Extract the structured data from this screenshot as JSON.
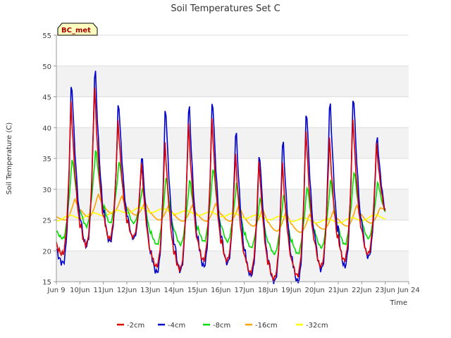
{
  "chart_data": {
    "type": "line",
    "title": "Soil Temperatures Set C",
    "xlabel": "Time",
    "ylabel": "Soil Temperature (C)",
    "site_label": "BC_met",
    "xlim": [
      9,
      24
    ],
    "ylim": [
      15,
      55
    ],
    "y_ticks": [
      15,
      20,
      25,
      30,
      35,
      40,
      45,
      50,
      55
    ],
    "x_ticks": [
      {
        "value": 9,
        "label": "Jun 9"
      },
      {
        "value": 10,
        "label": "10Jun"
      },
      {
        "value": 11,
        "label": "11Jun"
      },
      {
        "value": 12,
        "label": "12Jun"
      },
      {
        "value": 13,
        "label": "13Jun"
      },
      {
        "value": 14,
        "label": "14Jun"
      },
      {
        "value": 15,
        "label": "15Jun"
      },
      {
        "value": 16,
        "label": "16Jun"
      },
      {
        "value": 17,
        "label": "17Jun"
      },
      {
        "value": 18,
        "label": "18Jun"
      },
      {
        "value": 19,
        "label": "19Jun"
      },
      {
        "value": 20,
        "label": "20Jun"
      },
      {
        "value": 21,
        "label": "21Jun"
      },
      {
        "value": 22,
        "label": "22Jun"
      },
      {
        "value": 23,
        "label": "23Jun"
      },
      {
        "value": 24,
        "label": "Jun 24"
      }
    ],
    "grid": true,
    "legend_position": "bottom",
    "days": [
      9,
      10,
      11,
      12,
      13,
      14,
      15,
      16,
      17,
      18,
      19,
      20,
      21,
      22
    ],
    "series": [
      {
        "name": "-2cm",
        "color": "#dd0000",
        "min": [
          19.5,
          21.0,
          22.0,
          22.3,
          17.5,
          17.0,
          18.5,
          18.5,
          16.5,
          15.5,
          16.0,
          17.5,
          18.5,
          19.5
        ],
        "max": [
          44.5,
          47.0,
          41.5,
          34.5,
          38.0,
          41.0,
          42.0,
          36.0,
          35.0,
          34.5,
          40.0,
          38.5,
          42.0,
          37.5
        ],
        "end": 24.5
      },
      {
        "name": "-4cm",
        "color": "#0000cc",
        "min": [
          18.0,
          20.8,
          21.5,
          22.0,
          16.5,
          16.8,
          17.5,
          18.0,
          16.0,
          15.0,
          15.0,
          17.0,
          17.5,
          19.0
        ],
        "max": [
          49.0,
          51.5,
          45.5,
          36.5,
          45.0,
          45.5,
          46.2,
          41.0,
          37.0,
          39.5,
          44.5,
          46.0,
          47.0,
          39.5
        ],
        "end": 24.0
      },
      {
        "name": "-8cm",
        "color": "#00dd00",
        "min": [
          22.0,
          24.0,
          24.5,
          24.5,
          21.0,
          21.0,
          21.5,
          21.5,
          20.5,
          19.5,
          19.5,
          20.5,
          21.0,
          22.0
        ],
        "max": [
          35.5,
          37.0,
          35.0,
          30.5,
          32.5,
          32.0,
          34.0,
          31.5,
          29.0,
          29.5,
          31.0,
          32.0,
          33.5,
          31.5
        ],
        "end": 25.0
      },
      {
        "name": "-16cm",
        "color": "#ffa500",
        "min": [
          25.0,
          25.5,
          26.0,
          25.8,
          25.0,
          24.8,
          24.8,
          24.8,
          24.0,
          23.2,
          23.0,
          23.5,
          24.0,
          24.5
        ],
        "max": [
          28.5,
          29.3,
          29.0,
          28.0,
          27.5,
          27.5,
          27.8,
          27.5,
          27.0,
          26.5,
          26.0,
          26.5,
          27.5,
          27.0
        ],
        "end": 26.5
      },
      {
        "name": "-32cm",
        "color": "#ffff00",
        "trend": [
          [
            9.0,
            25.2
          ],
          [
            10.5,
            25.8
          ],
          [
            11.5,
            26.2
          ],
          [
            12.5,
            26.7
          ],
          [
            13.5,
            26.5
          ],
          [
            14.5,
            26.2
          ],
          [
            15.5,
            26.0
          ],
          [
            16.5,
            25.8
          ],
          [
            17.5,
            25.5
          ],
          [
            18.5,
            25.3
          ],
          [
            19.5,
            25.0
          ],
          [
            20.5,
            24.8
          ],
          [
            21.5,
            25.0
          ],
          [
            22.5,
            25.5
          ],
          [
            23.0,
            25.5
          ]
        ]
      }
    ]
  }
}
